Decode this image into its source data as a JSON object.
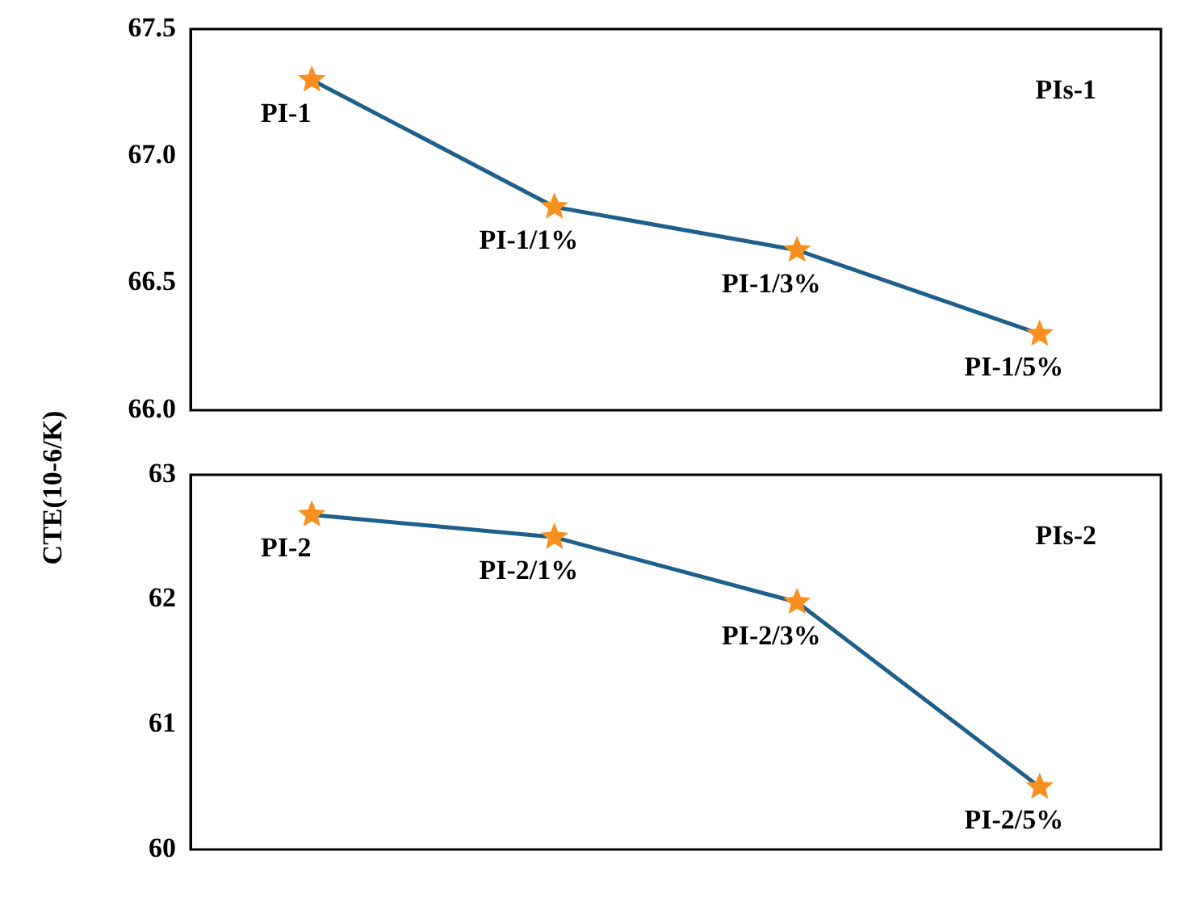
{
  "chart_data": [
    {
      "type": "line",
      "categories": [
        "PI-1",
        "PI-1/1%",
        "PI-1/3%",
        "PI-1/5%"
      ],
      "series": [
        {
          "color": "#1f5f8b",
          "colors": [
            "#f7901e",
            "#f7901e",
            "#f7901e",
            "#f7901e"
          ],
          "values": [
            67.3,
            66.8,
            66.63,
            66.3
          ]
        }
      ],
      "ylim": [
        66.0,
        67.5
      ],
      "yticks": [
        {
          "value": 66,
          "label": "66.0"
        },
        67.5,
        {
          "value": 67,
          "label": "67.0"
        },
        {
          "value": 66.5,
          "label": "66.5"
        }
      ],
      "annotations": [
        "PIs-1"
      ],
      "marker": "star",
      "grid": false,
      "legend": false,
      "tick_labels": "y"
    },
    {
      "type": "line",
      "categories": [
        "PI-2",
        "PI-2/1%",
        "PI-2/3%",
        "PI-2/5%"
      ],
      "series": [
        {
          "color": "#1f5f8b",
          "colors": [
            "#f7901e",
            "#f7901e",
            "#f7901e",
            "#f7901e"
          ],
          "values": [
            62.68,
            62.5,
            61.98,
            60.5
          ]
        }
      ],
      "ylim": [
        60,
        63
      ],
      "yticks": [
        60,
        61,
        62,
        63
      ],
      "ylabel": "CTE(10-6/K)",
      "annotations": [
        "PIs-2"
      ],
      "marker": "star",
      "grid": false,
      "legend": false,
      "tick_labels": "y"
    }
  ]
}
